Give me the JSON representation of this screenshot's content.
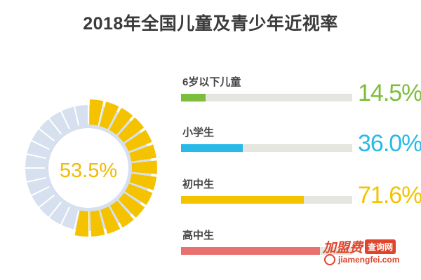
{
  "chart_data": {
    "type": "bar",
    "title": "2018年全国儿童及青少年近视率",
    "donut": {
      "value": 53.5,
      "label": "53.5%",
      "color": "#f5c200",
      "track_color": "#d6e0ef"
    },
    "categories": [
      "6岁以下儿童",
      "小学生",
      "初中生",
      "高中生"
    ],
    "values": [
      14.5,
      36.0,
      71.6,
      81.0
    ],
    "value_labels": [
      "14.5%",
      "36.0%",
      "71.6%",
      ""
    ],
    "colors": [
      "#7cbd3b",
      "#29b9e6",
      "#f3c300",
      "#e8706f"
    ],
    "ylim": [
      0,
      100
    ]
  },
  "watermark": {
    "brand": "加盟费",
    "tag": "查询网",
    "url": "jiamengfei.com"
  }
}
